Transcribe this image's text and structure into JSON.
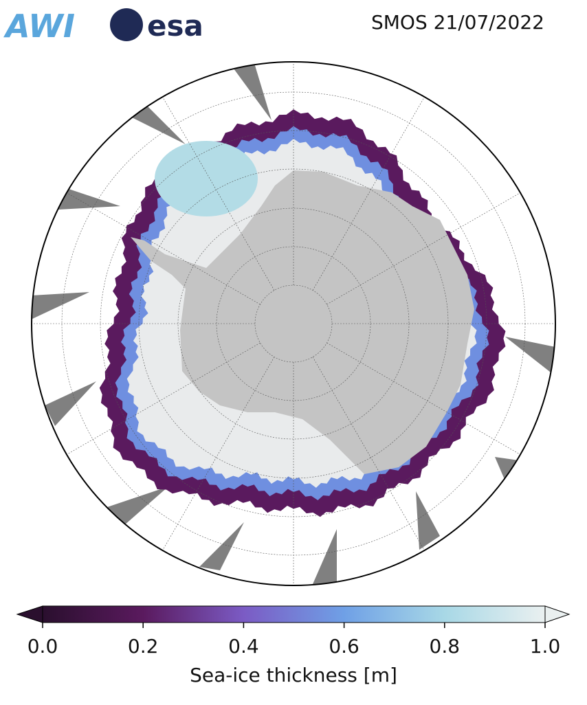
{
  "header": {
    "logos": [
      "AWI",
      "esa"
    ],
    "title": "SMOS 21/07/2022"
  },
  "colorbar": {
    "label": "Sea-ice thickness [m]",
    "lim": [
      0,
      1
    ],
    "ticks": [
      {
        "value": 0,
        "label": "0.0"
      },
      {
        "value": 0.2,
        "label": "0.2"
      },
      {
        "value": 0.4,
        "label": "0.4"
      },
      {
        "value": 0.6,
        "label": "0.6"
      },
      {
        "value": 0.8,
        "label": "0.8"
      },
      {
        "value": 1,
        "label": "1.0"
      }
    ],
    "colors": [
      "#2a0f2e",
      "#5a1a5e",
      "#7b5bc4",
      "#6fa0e6",
      "#a8d8e6",
      "#eaf0f0"
    ]
  }
}
